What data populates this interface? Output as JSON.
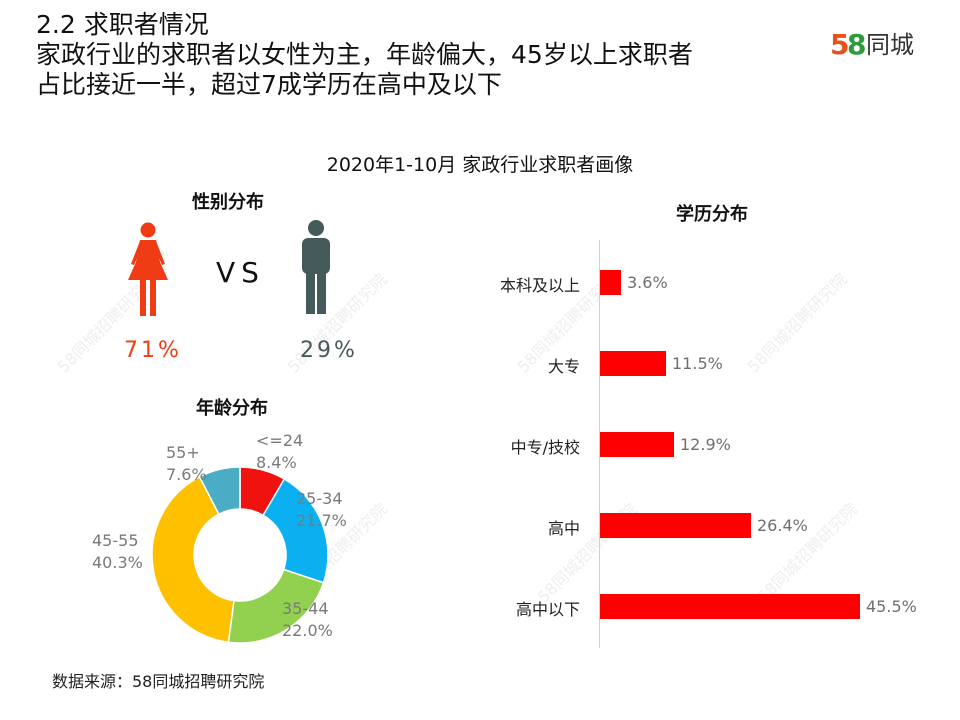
{
  "header": {
    "section": "2.2  求职者情况",
    "line1": "家政行业的求职者以女性为主，年龄偏大，45岁以上求职者",
    "line2": "占比接近一半，超过7成学历在高中及以下"
  },
  "brand": {
    "num": "58",
    "name": "同城",
    "color_5": "#e8501e",
    "color_8": "#2b9b3b"
  },
  "chart_title": "2020年1-10月 家政行业求职者画像",
  "gender": {
    "title": "性别分布",
    "vs": "VS",
    "female_pct": "71%",
    "male_pct": "29%",
    "female_color": "#f03c14",
    "male_color": "#455a5a",
    "icons": [
      "female-icon",
      "male-icon"
    ]
  },
  "age": {
    "title": "年龄分布",
    "labels": [
      {
        "name": "<=24",
        "pct": "8.4%"
      },
      {
        "name": "25-34",
        "pct": "21.7%"
      },
      {
        "name": "35-44",
        "pct": "22.0%"
      },
      {
        "name": "45-55",
        "pct": "40.3%"
      },
      {
        "name": "55+",
        "pct": "7.6%"
      }
    ]
  },
  "education": {
    "title": "学历分布",
    "labels": [
      {
        "name": "本科及以上",
        "pct": "3.6%"
      },
      {
        "name": "大专",
        "pct": "11.5%"
      },
      {
        "name": "中专/技校",
        "pct": "12.9%"
      },
      {
        "name": "高中",
        "pct": "26.4%"
      },
      {
        "name": "高中以下",
        "pct": "45.5%"
      }
    ]
  },
  "chart_data": [
    {
      "type": "pie",
      "title": "性别分布",
      "categories": [
        "女",
        "男"
      ],
      "values": [
        71,
        29
      ],
      "colors": [
        "#f03c14",
        "#455a5a"
      ]
    },
    {
      "type": "pie",
      "title": "年龄分布",
      "categories": [
        "<=24",
        "25-34",
        "35-44",
        "45-55",
        "55+"
      ],
      "values": [
        8.4,
        21.7,
        22.0,
        40.3,
        7.6
      ],
      "colors": [
        "#f0120f",
        "#0ab0f0",
        "#92d050",
        "#ffc000",
        "#4bacc6"
      ]
    },
    {
      "type": "bar",
      "orientation": "horizontal",
      "title": "学历分布",
      "categories": [
        "本科及以上",
        "大专",
        "中专/技校",
        "高中",
        "高中以下"
      ],
      "values": [
        3.6,
        11.5,
        12.9,
        26.4,
        45.5
      ],
      "color": "#ff0000",
      "xlim": [
        0,
        45.5
      ]
    }
  ],
  "source": "数据来源：58同城招聘研究院",
  "watermark": "58同城招聘研究院"
}
